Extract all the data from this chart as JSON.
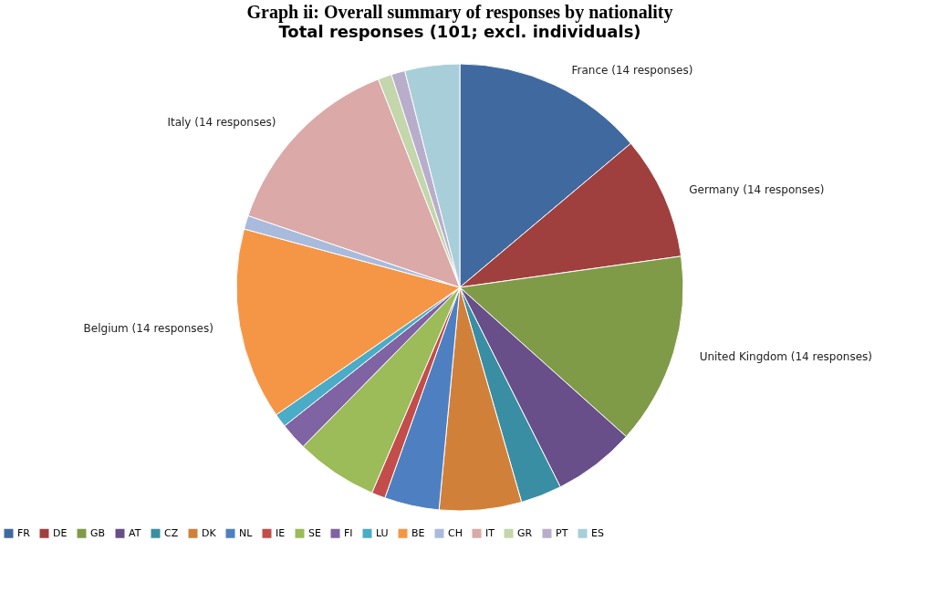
{
  "chart_data": {
    "type": "pie",
    "title": "Graph ii: Overall summary of responses by nationality",
    "subtitle": "Total responses (101; excl. individuals)",
    "categories": [
      "FR",
      "DE",
      "GB",
      "AT",
      "CZ",
      "DK",
      "NL",
      "IE",
      "SE",
      "FI",
      "LU",
      "BE",
      "CH",
      "IT",
      "GR",
      "PT",
      "ES"
    ],
    "values": [
      14,
      9,
      14,
      6,
      3,
      6,
      4,
      1,
      6,
      2,
      1,
      14,
      1,
      14,
      1,
      1,
      4
    ],
    "colors": [
      "#4069a0",
      "#a0403e",
      "#7f9b48",
      "#684f89",
      "#3a8ea3",
      "#d1803a",
      "#4e80c1",
      "#c24d4a",
      "#9cbb59",
      "#7f63a3",
      "#4aacc6",
      "#f59646",
      "#a9bbdc",
      "#daa9a8",
      "#c4d6ab",
      "#b8aecb",
      "#a8ceda"
    ],
    "annotations": [
      {
        "text": "France (14 responses)",
        "x": "FR"
      },
      {
        "text": "Germany (14 responses)",
        "x": "DE"
      },
      {
        "text": "United Kingdom (14 responses)",
        "x": "GB"
      },
      {
        "text": "Belgium (14 responses)",
        "x": "BE"
      },
      {
        "text": "Italy (14 responses)",
        "x": "IT"
      }
    ],
    "legend": "bottom"
  }
}
